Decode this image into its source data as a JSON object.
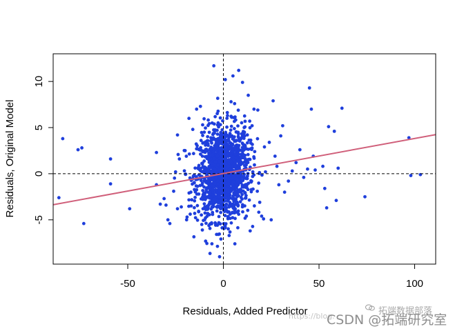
{
  "chart_data": {
    "type": "scatter",
    "xlabel": "Residuals, Added Predictor",
    "ylabel": "Residuals, Original Model",
    "xlim": [
      -89,
      111
    ],
    "ylim": [
      -9.8,
      13.0
    ],
    "x_ticks": [
      -50,
      0,
      50,
      100
    ],
    "y_ticks": [
      -5,
      0,
      5,
      10
    ],
    "x_tick_labels": [
      "-50",
      "0",
      "50",
      "100"
    ],
    "y_tick_labels": [
      "-5",
      "0",
      "5",
      "10"
    ],
    "reference_lines": {
      "vertical_x": 0,
      "horizontal_y": 0,
      "style": "dashed",
      "color": "#000000"
    },
    "fit_line": {
      "intercept": 0.02,
      "slope": 0.038,
      "color": "#d05f7a"
    },
    "point_color": "#1f3fdc",
    "grid": false,
    "points": {
      "outliers": [
        [
          -84,
          3.8
        ],
        [
          -86,
          -2.6
        ],
        [
          -76,
          2.6
        ],
        [
          -74,
          2.8
        ],
        [
          -73,
          -5.4
        ],
        [
          -59,
          1.6
        ],
        [
          -59,
          -1.1
        ],
        [
          -49,
          -3.8
        ],
        [
          -35,
          2.3
        ],
        [
          -35,
          -1.2
        ],
        [
          -33,
          -3.3
        ],
        [
          -31,
          -2.7
        ],
        [
          -30,
          -3.4
        ],
        [
          -29,
          -5.0
        ],
        [
          -28,
          -5.4
        ],
        [
          -26,
          -1.9
        ],
        [
          -25,
          0.2
        ],
        [
          -24,
          -3.8
        ],
        [
          -24,
          4.2
        ],
        [
          -23,
          1.6
        ],
        [
          -22,
          -3.6
        ],
        [
          -20,
          2.5
        ],
        [
          -19,
          -4.7
        ],
        [
          -18,
          6.0
        ],
        [
          -17,
          -2.0
        ],
        [
          -16,
          4.8
        ],
        [
          -15,
          -4.3
        ],
        [
          -14,
          7.0
        ],
        [
          -12,
          7.3
        ],
        [
          -11,
          1.9
        ],
        [
          -11,
          -6.1
        ],
        [
          -10,
          4.5
        ],
        [
          -6,
          -7.6
        ],
        [
          -5,
          11.7
        ],
        [
          -2,
          -9.0
        ],
        [
          1,
          10.2
        ],
        [
          3,
          -6.7
        ],
        [
          4,
          7.8
        ],
        [
          5,
          10.6
        ],
        [
          6,
          -7.6
        ],
        [
          8,
          11.2
        ],
        [
          10,
          9.9
        ],
        [
          11,
          4.5
        ],
        [
          12,
          -4.6
        ],
        [
          13,
          8.5
        ],
        [
          14,
          -6.2
        ],
        [
          15,
          5.2
        ],
        [
          16,
          7.0
        ],
        [
          18,
          6.9
        ],
        [
          19,
          -3.1
        ],
        [
          20,
          -4.6
        ],
        [
          21,
          -4.9
        ],
        [
          22,
          0.2
        ],
        [
          24,
          3.4
        ],
        [
          25,
          -5.0
        ],
        [
          26,
          7.9
        ],
        [
          27,
          1.9
        ],
        [
          28,
          0.8
        ],
        [
          29,
          -1.2
        ],
        [
          30,
          4.1
        ],
        [
          31,
          5.2
        ],
        [
          32,
          -2.0
        ],
        [
          34,
          -0.8
        ],
        [
          36,
          0.3
        ],
        [
          38,
          1.2
        ],
        [
          40,
          2.6
        ],
        [
          42,
          -0.4
        ],
        [
          44,
          0.5
        ],
        [
          45,
          9.3
        ],
        [
          46,
          7.0
        ],
        [
          47,
          1.9
        ],
        [
          48,
          0.4
        ],
        [
          52,
          0.8
        ],
        [
          53,
          -1.6
        ],
        [
          54,
          -3.7
        ],
        [
          55,
          5.1
        ],
        [
          58,
          4.6
        ],
        [
          59,
          -2.9
        ],
        [
          60,
          0.6
        ],
        [
          62,
          7.1
        ],
        [
          74,
          -2.5
        ],
        [
          97,
          3.9
        ],
        [
          98,
          -0.2
        ],
        [
          103,
          -0.1
        ]
      ],
      "cloud": {
        "count": 1500,
        "x_mean": 0,
        "x_sd": 6.8,
        "y_mean": 0.1,
        "y_sd": 2.5,
        "slope": 0.038
      }
    }
  },
  "watermark": {
    "top": "拓端数据部落",
    "url": "https://blog.",
    "csdn": "CSDN @拓端研究室"
  }
}
